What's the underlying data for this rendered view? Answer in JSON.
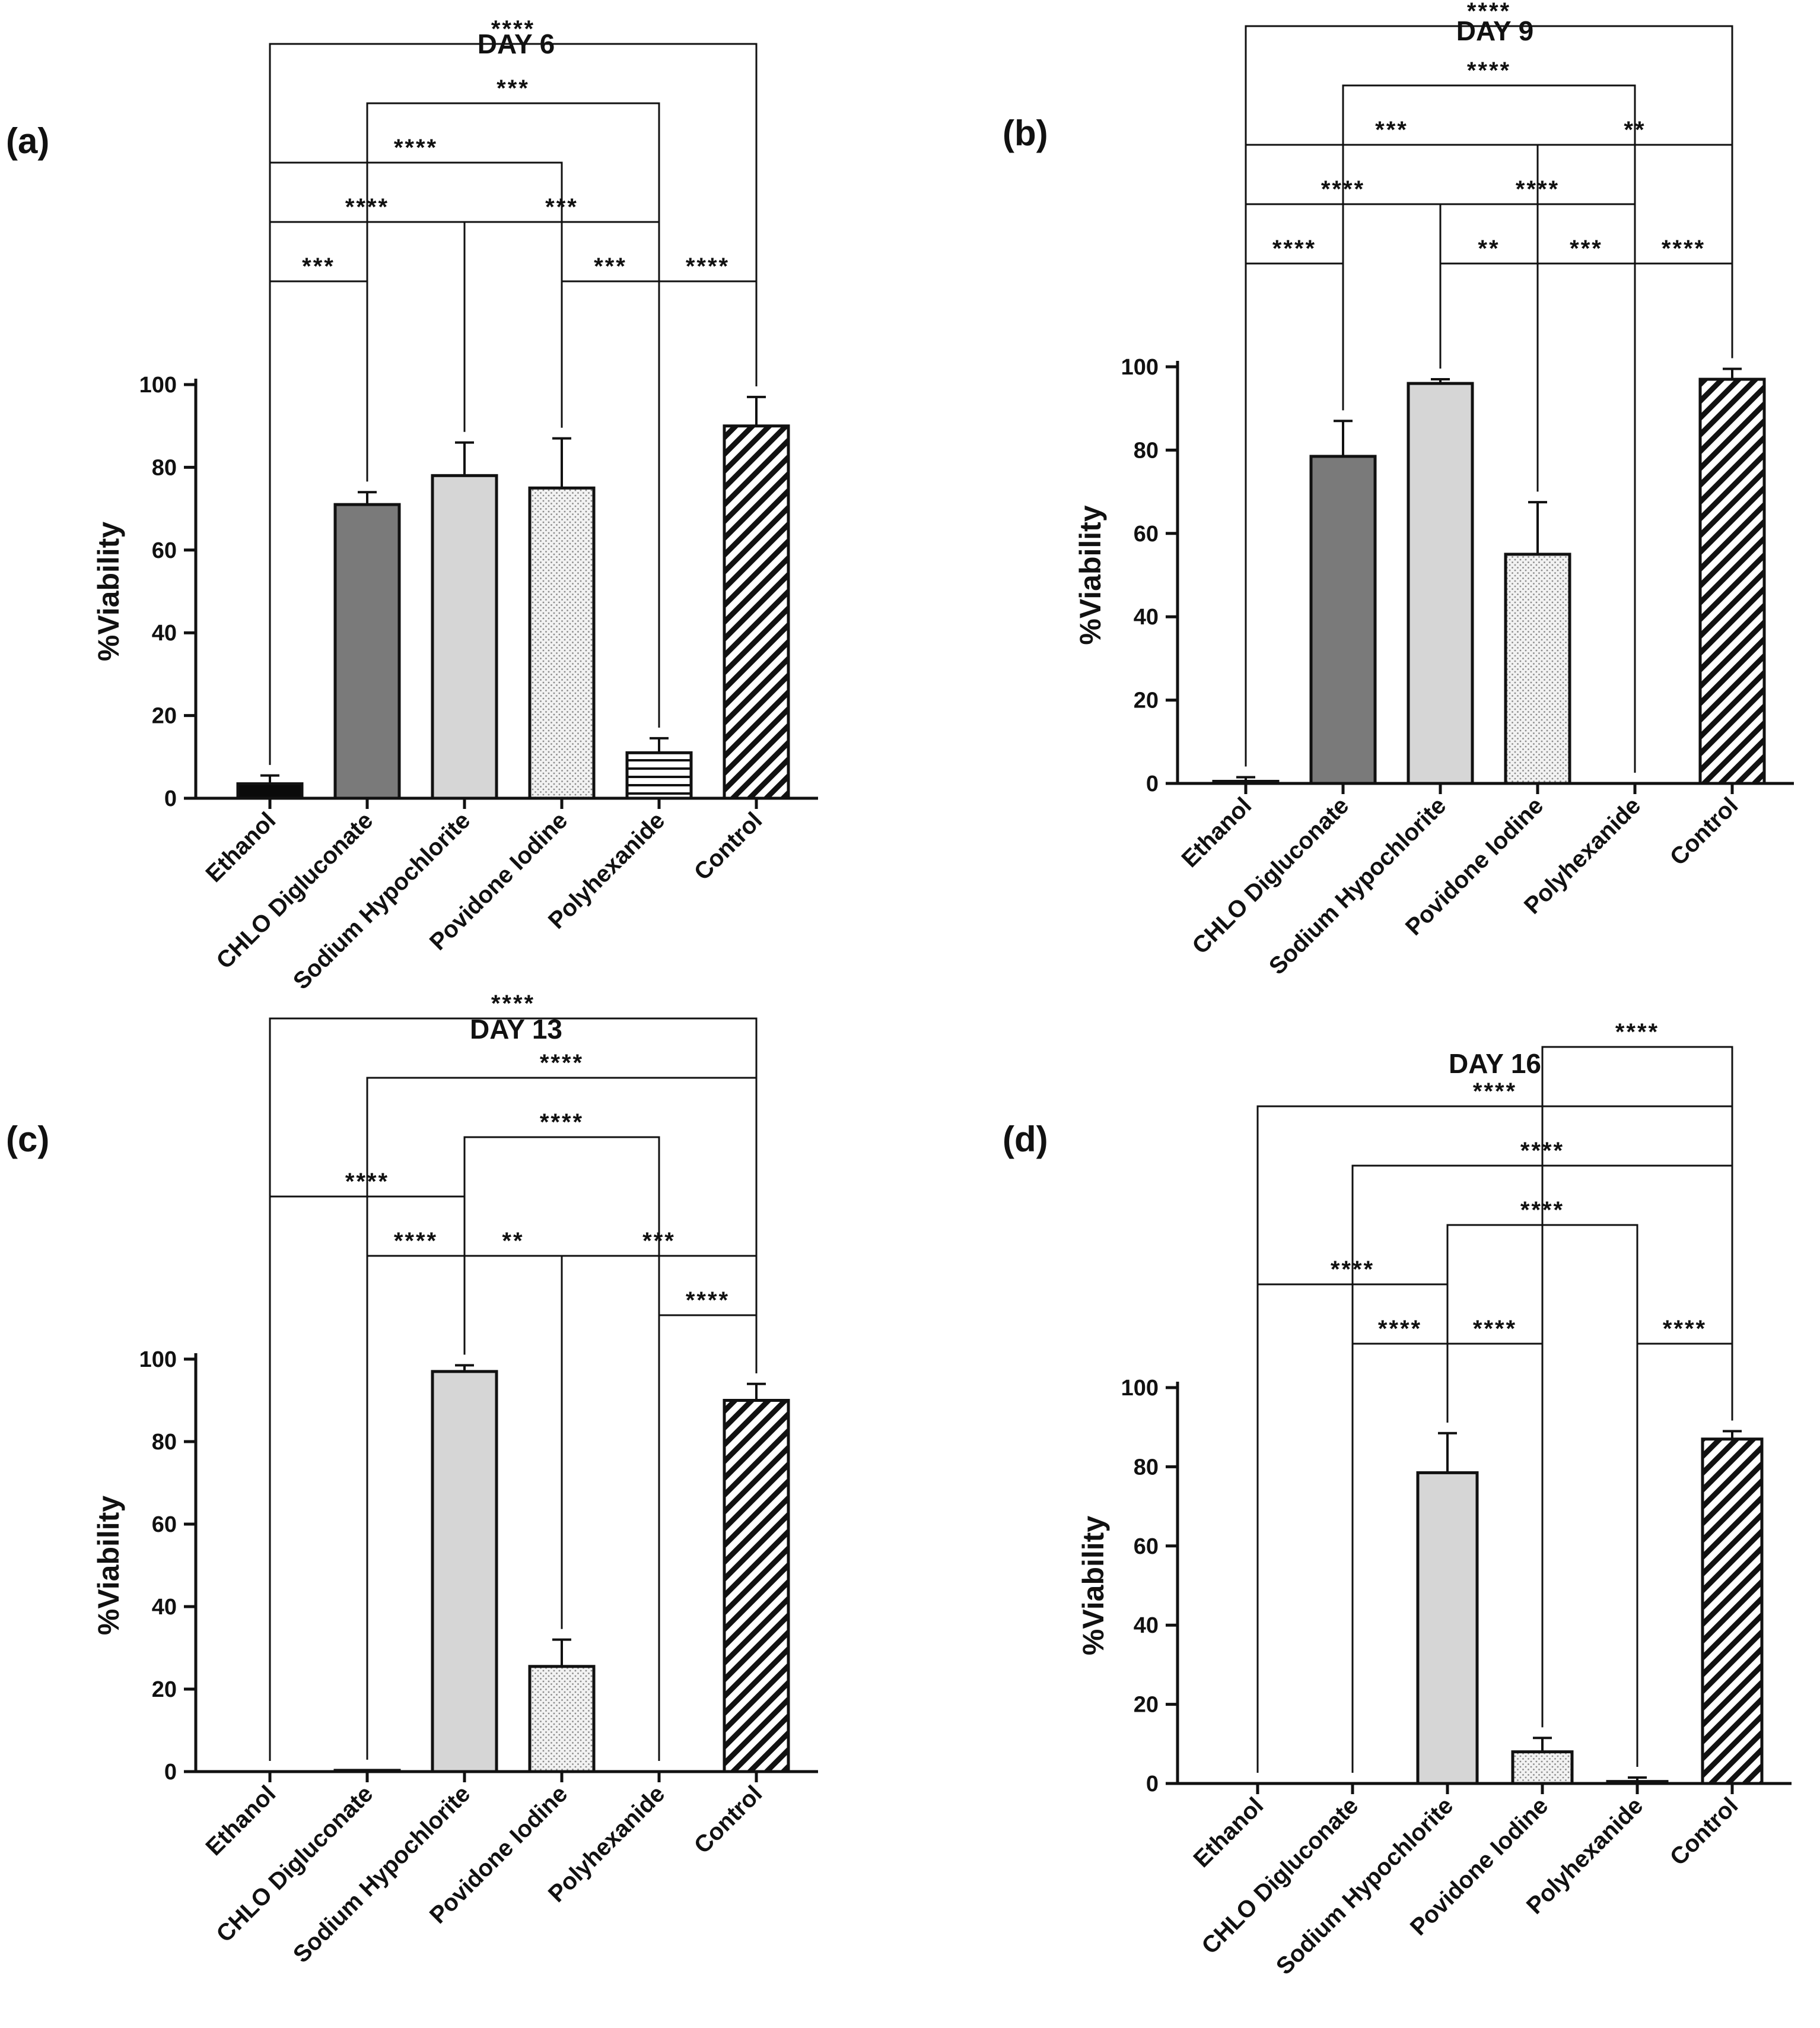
{
  "chart_data": [
    {
      "type": "bar",
      "panel_label": "(a)",
      "title": "DAY 6",
      "ylabel": "%Viability",
      "ylim": [
        0,
        100
      ],
      "yticks": [
        0,
        20,
        40,
        60,
        80,
        100
      ],
      "ytick_labels": [
        "0",
        "20",
        "40",
        "60",
        "80",
        "100"
      ],
      "categories": [
        "Ethanol",
        "CHLO Digluconate",
        "Sodium Hypochlorite",
        "Povidone Iodine",
        "Polyhexanide",
        "Control"
      ],
      "values": [
        3.5,
        71,
        78,
        75,
        11,
        90
      ],
      "errors": [
        2,
        3,
        8,
        12,
        3.5,
        7
      ],
      "patterns": [
        "black",
        "dark",
        "light",
        "dots",
        "hlines",
        "diag"
      ],
      "comparisons": [
        {
          "a": 0,
          "b": 5,
          "level": 95,
          "label": "****"
        },
        {
          "a": 1,
          "b": 4,
          "level": 81,
          "label": "***"
        },
        {
          "a": 0,
          "b": 3,
          "level": 67,
          "label": "****"
        },
        {
          "a": 0,
          "b": 2,
          "level": 53,
          "label": "****"
        },
        {
          "a": 2,
          "b": 4,
          "level": 53,
          "label": "***"
        },
        {
          "a": 0,
          "b": 1,
          "level": 39,
          "label": "***"
        },
        {
          "a": 3,
          "b": 4,
          "level": 39,
          "label": "***"
        },
        {
          "a": 4,
          "b": 5,
          "level": 39,
          "label": "****"
        }
      ]
    },
    {
      "type": "bar",
      "panel_label": "(b)",
      "title": "DAY 9",
      "ylabel": "%Viability",
      "ylim": [
        0,
        100
      ],
      "yticks": [
        0,
        20,
        40,
        60,
        80,
        100
      ],
      "ytick_labels": [
        "0",
        "20",
        "40",
        "60",
        "80",
        "100"
      ],
      "categories": [
        "Ethanol",
        "CHLO Digluconate",
        "Sodium Hypochlorite",
        "Povidone Iodine",
        "Polyhexanide",
        "Control"
      ],
      "values": [
        0.5,
        78.5,
        96,
        55,
        0,
        97
      ],
      "errors": [
        1,
        8.5,
        1,
        12.5,
        0,
        2.5
      ],
      "patterns": [
        "black",
        "dark",
        "light",
        "dots",
        "hlines",
        "diag"
      ],
      "comparisons": [
        {
          "a": 0,
          "b": 5,
          "level": 95,
          "label": "****"
        },
        {
          "a": 1,
          "b": 4,
          "level": 81,
          "label": "****"
        },
        {
          "a": 0,
          "b": 3,
          "level": 67,
          "label": "***"
        },
        {
          "a": 3,
          "b": 5,
          "level": 67,
          "label": "**"
        },
        {
          "a": 0,
          "b": 2,
          "level": 53,
          "label": "****"
        },
        {
          "a": 2,
          "b": 4,
          "level": 53,
          "label": "****"
        },
        {
          "a": 0,
          "b": 1,
          "level": 39,
          "label": "****"
        },
        {
          "a": 2,
          "b": 3,
          "level": 39,
          "label": "**"
        },
        {
          "a": 3,
          "b": 4,
          "level": 39,
          "label": "***"
        },
        {
          "a": 4,
          "b": 5,
          "level": 39,
          "label": "****"
        }
      ]
    },
    {
      "type": "bar",
      "panel_label": "(c)",
      "title": "DAY 13",
      "ylabel": "%Viability",
      "ylim": [
        0,
        100
      ],
      "yticks": [
        0,
        20,
        40,
        60,
        80,
        100
      ],
      "ytick_labels": [
        "0",
        "20",
        "40",
        "60",
        "80",
        "100"
      ],
      "categories": [
        "Ethanol",
        "CHLO Digluconate",
        "Sodium Hypochlorite",
        "Povidone Iodine",
        "Polyhexanide",
        "Control"
      ],
      "values": [
        0,
        0.3,
        97,
        25.5,
        0,
        90
      ],
      "errors": [
        0,
        0,
        1.5,
        6.5,
        0,
        4
      ],
      "patterns": [
        "black",
        "dark",
        "light",
        "dots",
        "hlines",
        "diag"
      ],
      "comparisons": [
        {
          "a": 0,
          "b": 5,
          "level": 95,
          "label": "****"
        },
        {
          "a": 1,
          "b": 5,
          "level": 81,
          "label": "****"
        },
        {
          "a": 2,
          "b": 4,
          "level": 67,
          "label": "****"
        },
        {
          "a": 0,
          "b": 2,
          "level": 53,
          "label": "****"
        },
        {
          "a": 1,
          "b": 2,
          "level": 39,
          "label": "****"
        },
        {
          "a": 2,
          "b": 3,
          "level": 39,
          "label": "**"
        },
        {
          "a": 3,
          "b": 5,
          "level": 39,
          "label": "***"
        },
        {
          "a": 4,
          "b": 5,
          "level": 25,
          "label": "****"
        }
      ]
    },
    {
      "type": "bar",
      "panel_label": "(d)",
      "title": "DAY 16",
      "ylabel": "%Viability",
      "ylim": [
        0,
        100
      ],
      "yticks": [
        0,
        20,
        40,
        60,
        80,
        100
      ],
      "ytick_labels": [
        "0",
        "20",
        "40",
        "60",
        "80",
        "100"
      ],
      "categories": [
        "Ethanol",
        "CHLO Digluconate",
        "Sodium Hypochlorite",
        "Povidone Iodine",
        "Polyhexanide",
        "Control"
      ],
      "values": [
        0,
        0,
        78.5,
        8,
        0.5,
        87
      ],
      "errors": [
        0,
        0,
        10,
        3.5,
        1,
        2
      ],
      "patterns": [
        "black",
        "dark",
        "light",
        "dots",
        "hlines",
        "diag"
      ],
      "comparisons": [
        {
          "a": 3,
          "b": 5,
          "level": 95,
          "label": "****"
        },
        {
          "a": 0,
          "b": 5,
          "level": 81,
          "label": "****"
        },
        {
          "a": 1,
          "b": 5,
          "level": 67,
          "label": "****"
        },
        {
          "a": 2,
          "b": 4,
          "level": 53,
          "label": "****"
        },
        {
          "a": 0,
          "b": 2,
          "level": 39,
          "label": "****"
        },
        {
          "a": 1,
          "b": 2,
          "level": 25,
          "label": "****"
        },
        {
          "a": 2,
          "b": 3,
          "level": 25,
          "label": "****"
        },
        {
          "a": 4,
          "b": 5,
          "level": 25,
          "label": "****"
        }
      ]
    }
  ]
}
